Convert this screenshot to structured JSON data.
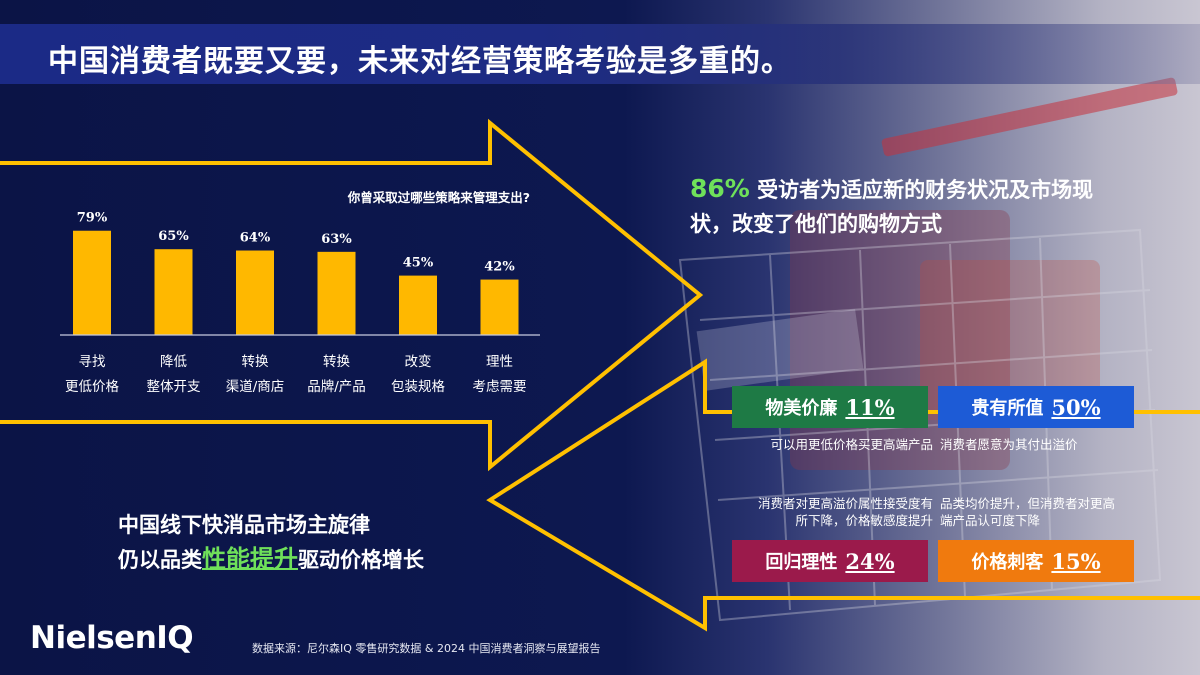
{
  "title": "中国消费者既要又要，未来对经营策略考验是多重的。",
  "colors": {
    "bar": "#ffb800",
    "arrow": "#ffc000",
    "highlight_green": "#6fe15a",
    "quad_green": "#1e7a45",
    "quad_blue": "#1d5bd6",
    "quad_red": "#9b1a4b",
    "quad_orange": "#f07a0e"
  },
  "chart_data": {
    "type": "bar",
    "title": "你曾采取过哪些策略来管理支出?",
    "categories": [
      "寻找 更低价格",
      "降低 整体开支",
      "转换 渠道/商店",
      "转换 品牌/产品",
      "改变 包装规格",
      "理性 考虑需要"
    ],
    "category_lines": [
      [
        "寻找",
        "更低价格"
      ],
      [
        "降低",
        "整体开支"
      ],
      [
        "转换",
        "渠道/商店"
      ],
      [
        "转换",
        "品牌/产品"
      ],
      [
        "改变",
        "包装规格"
      ],
      [
        "理性",
        "考虑需要"
      ]
    ],
    "values": [
      79,
      65,
      64,
      63,
      45,
      42
    ],
    "value_labels": [
      "79%",
      "65%",
      "64%",
      "63%",
      "45%",
      "42%"
    ],
    "unit": "%",
    "ylim": [
      0,
      100
    ],
    "grid": false,
    "xlabel": "",
    "ylabel": ""
  },
  "callout": {
    "percent": "86%",
    "text": "受访者为适应新的财务状况及市场现状，改变了他们的购物方式"
  },
  "bottom_message": {
    "line1": "中国线下快消品市场主旋律",
    "line2_before": "仍以品类",
    "line2_highlight": "性能提升",
    "line2_after": "驱动价格增长"
  },
  "quadrants": [
    {
      "label": "物美价廉",
      "value": "11%",
      "desc": "可以用更低价格买更高端产品"
    },
    {
      "label": "贵有所值",
      "value": "50%",
      "desc": "消费者愿意为其付出溢价"
    },
    {
      "label": "回归理性",
      "value": "24%",
      "desc_line1": "消费者对更高溢价属性接受度有",
      "desc_line2": "所下降，价格敏感度提升"
    },
    {
      "label": "价格刺客",
      "value": "15%",
      "desc_line1": "品类均价提升，但消费者对更高",
      "desc_line2": "端产品认可度下降"
    }
  ],
  "logo": "NielsenIQ",
  "source": "数据来源：尼尔森IQ 零售研究数据 & 2024 中国消费者洞察与展望报告"
}
